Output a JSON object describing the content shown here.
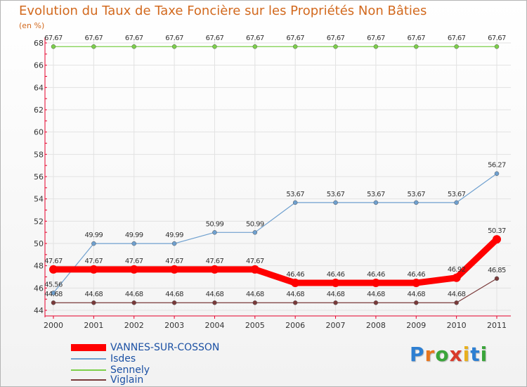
{
  "title": "Evolution du Taux de Taxe Foncière sur les Propriétés Non Bâties",
  "unit_label": "(en %)",
  "logo_text": "Proxiti",
  "colors": {
    "title": "#d2691e",
    "axis": "#e6002a",
    "grid": "#e2e2e2",
    "legend_text": "#1c51a4"
  },
  "chart_data": {
    "type": "line",
    "title": "Evolution du Taux de Taxe Foncière sur les Propriétés Non Bâties",
    "ylabel": "(en %)",
    "ylim": [
      44,
      68
    ],
    "y_ticks": [
      "44",
      "46",
      "48",
      "50",
      "52",
      "54",
      "56",
      "58",
      "60",
      "62",
      "64",
      "66",
      "68"
    ],
    "categories": [
      "2000",
      "2001",
      "2002",
      "2003",
      "2004",
      "2005",
      "2006",
      "2007",
      "2008",
      "2009",
      "2010",
      "2011"
    ],
    "series": [
      {
        "name": "VANNES-SUR-COSSON",
        "color": "#ff0000",
        "values": [
          47.67,
          47.67,
          47.67,
          47.67,
          47.67,
          47.67,
          46.46,
          46.46,
          46.46,
          46.46,
          46.92,
          50.37
        ],
        "labels": [
          "47.67",
          "47.67",
          "47.67",
          "47.67",
          "47.67",
          "47.67",
          "46.46",
          "46.46",
          "46.46",
          "46.46",
          "46.92",
          "50.37"
        ]
      },
      {
        "name": "Isdes",
        "color": "#6fa0cf",
        "values": [
          45.56,
          49.99,
          49.99,
          49.99,
          50.99,
          50.99,
          53.67,
          53.67,
          53.67,
          53.67,
          53.67,
          56.27
        ],
        "labels": [
          "45.56",
          "49.99",
          "49.99",
          "49.99",
          "50.99",
          "50.99",
          "53.67",
          "53.67",
          "53.67",
          "53.67",
          "53.67",
          "56.27"
        ]
      },
      {
        "name": "Sennely",
        "color": "#7ccf4a",
        "values": [
          67.67,
          67.67,
          67.67,
          67.67,
          67.67,
          67.67,
          67.67,
          67.67,
          67.67,
          67.67,
          67.67,
          67.67
        ],
        "labels": [
          "67.67",
          "67.67",
          "67.67",
          "67.67",
          "67.67",
          "67.67",
          "67.67",
          "67.67",
          "67.67",
          "67.67",
          "67.67",
          "67.67"
        ]
      },
      {
        "name": "Viglain",
        "color": "#7a3a3a",
        "values": [
          44.68,
          44.68,
          44.68,
          44.68,
          44.68,
          44.68,
          44.68,
          44.68,
          44.68,
          44.68,
          44.68,
          46.85
        ],
        "labels": [
          "44.68",
          "44.68",
          "44.68",
          "44.68",
          "44.68",
          "44.68",
          "44.68",
          "44.68",
          "44.68",
          "44.68",
          "44.68",
          "46.85"
        ]
      }
    ],
    "legend": {
      "position": "bottom-left",
      "entries": [
        "VANNES-SUR-COSSON",
        "Isdes",
        "Sennely",
        "Viglain"
      ]
    },
    "grid": true
  }
}
